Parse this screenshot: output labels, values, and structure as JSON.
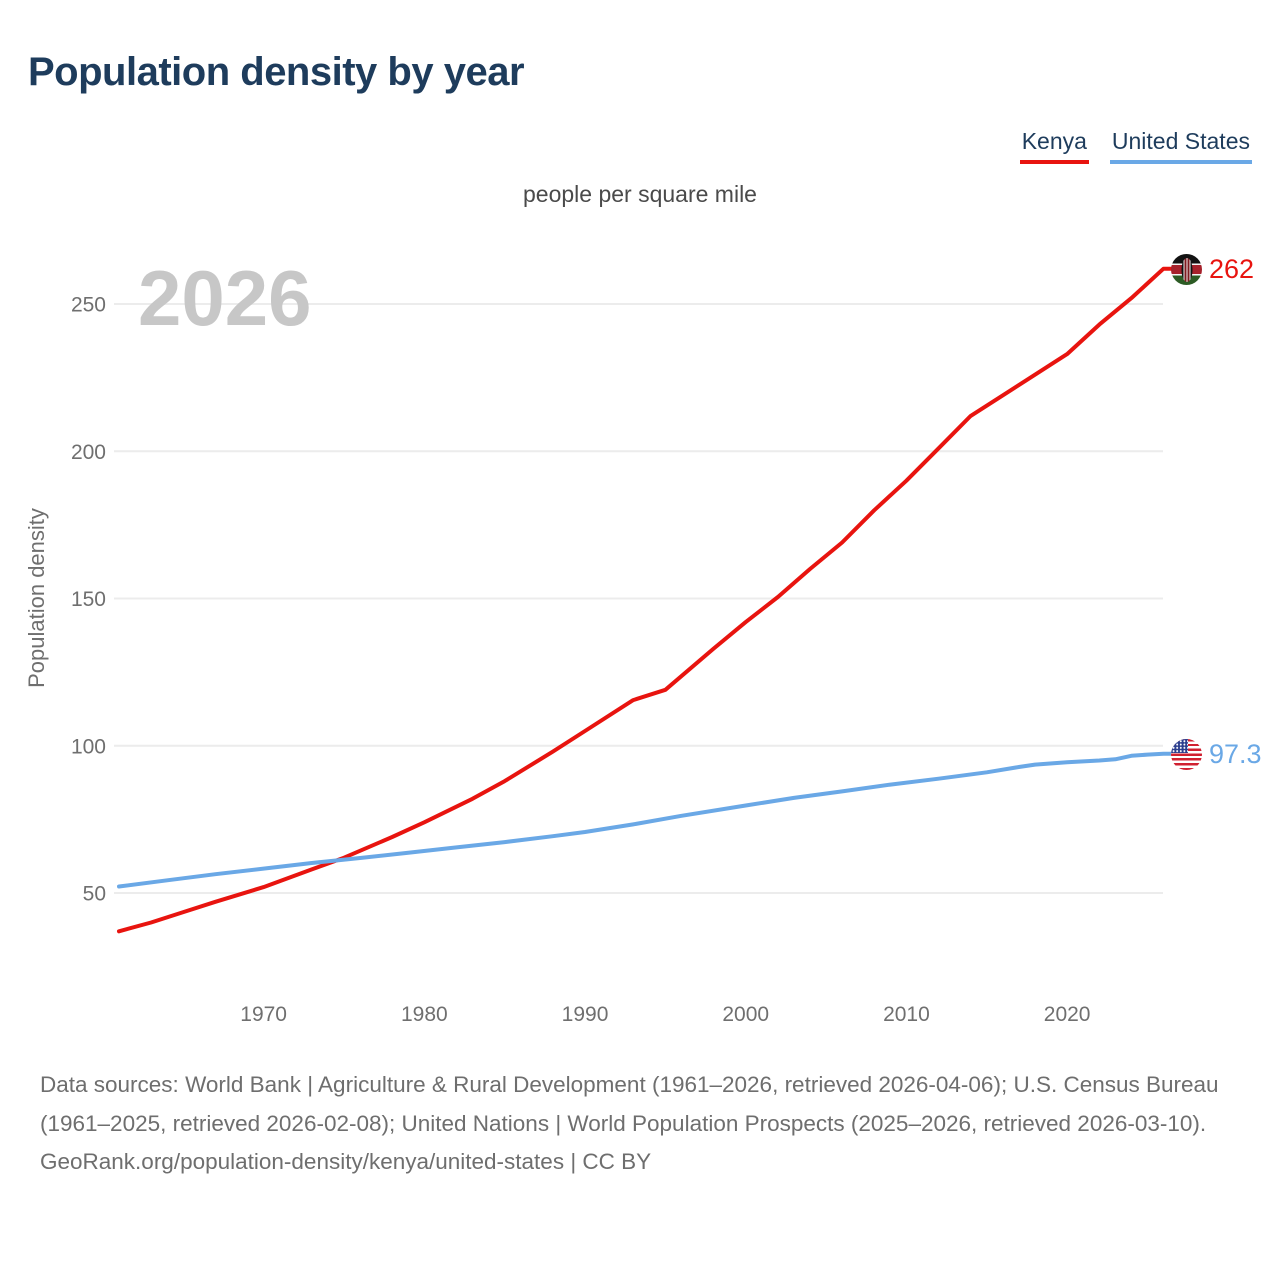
{
  "page": {
    "title": "Population density by year",
    "subtitle": "people per square mile",
    "watermark_year": "2026"
  },
  "legend": [
    {
      "label": "Kenya",
      "color": "#e8140f"
    },
    {
      "label": "United States",
      "color": "#6aa8e6"
    }
  ],
  "chart_data": {
    "type": "line",
    "title": "Population density by year",
    "subtitle": "people per square mile",
    "ylabel": "Population density",
    "unit": "people per square mile",
    "x_range": [
      1961,
      2026
    ],
    "y_ticks": [
      50,
      100,
      150,
      200,
      250
    ],
    "x_ticks": [
      1970,
      1980,
      1990,
      2000,
      2010,
      2020
    ],
    "grid": "horizontal-only",
    "legend_position": "top-right",
    "colors": {
      "grid_line": "#ececec",
      "axis_text": "#6f6f6f",
      "watermark": "#c7c7c7"
    },
    "series": [
      {
        "name": "Kenya",
        "color": "#e8140f",
        "end_label": "262",
        "flag": "kenya-flag",
        "points": [
          [
            1961,
            37
          ],
          [
            1963,
            40
          ],
          [
            1965,
            43.5
          ],
          [
            1967,
            47
          ],
          [
            1970,
            52
          ],
          [
            1973,
            58
          ],
          [
            1975,
            62
          ],
          [
            1978,
            69
          ],
          [
            1980,
            74
          ],
          [
            1983,
            82
          ],
          [
            1985,
            88
          ],
          [
            1988,
            98
          ],
          [
            1990,
            105
          ],
          [
            1993,
            115.5
          ],
          [
            1995,
            119
          ],
          [
            1998,
            133
          ],
          [
            2000,
            142
          ],
          [
            2002,
            150.5
          ],
          [
            2004,
            160
          ],
          [
            2006,
            169
          ],
          [
            2008,
            180
          ],
          [
            2010,
            190
          ],
          [
            2012,
            201
          ],
          [
            2014,
            212
          ],
          [
            2016,
            219
          ],
          [
            2018,
            226
          ],
          [
            2020,
            233
          ],
          [
            2022,
            243
          ],
          [
            2024,
            252
          ],
          [
            2026,
            262
          ]
        ]
      },
      {
        "name": "United States",
        "color": "#6aa8e6",
        "end_label": "97.3",
        "flag": "united-states-flag",
        "points": [
          [
            1961,
            52.2
          ],
          [
            1964,
            54.3
          ],
          [
            1967,
            56.4
          ],
          [
            1970,
            58.3
          ],
          [
            1973,
            60.2
          ],
          [
            1976,
            61.9
          ],
          [
            1979,
            63.7
          ],
          [
            1982,
            65.5
          ],
          [
            1985,
            67.3
          ],
          [
            1988,
            69.3
          ],
          [
            1990,
            70.7
          ],
          [
            1993,
            73.3
          ],
          [
            1996,
            76.2
          ],
          [
            2000,
            79.7
          ],
          [
            2003,
            82.3
          ],
          [
            2006,
            84.5
          ],
          [
            2009,
            86.8
          ],
          [
            2012,
            88.8
          ],
          [
            2015,
            91
          ],
          [
            2017,
            92.8
          ],
          [
            2018,
            93.6
          ],
          [
            2020,
            94.4
          ],
          [
            2022,
            95
          ],
          [
            2023,
            95.4
          ],
          [
            2024,
            96.6
          ],
          [
            2025,
            97
          ],
          [
            2026,
            97.3
          ]
        ]
      }
    ]
  },
  "footer": {
    "sources": "Data sources: World Bank | Agriculture & Rural Development (1961–2026, retrieved 2026-04-06); U.S. Census Bureau (1961–2025, retrieved 2026-02-08); United Nations | World Population Prospects (2025–2026, retrieved 2026-03-10).",
    "attribution": "GeoRank.org/population-density/kenya/united-states | CC BY"
  }
}
